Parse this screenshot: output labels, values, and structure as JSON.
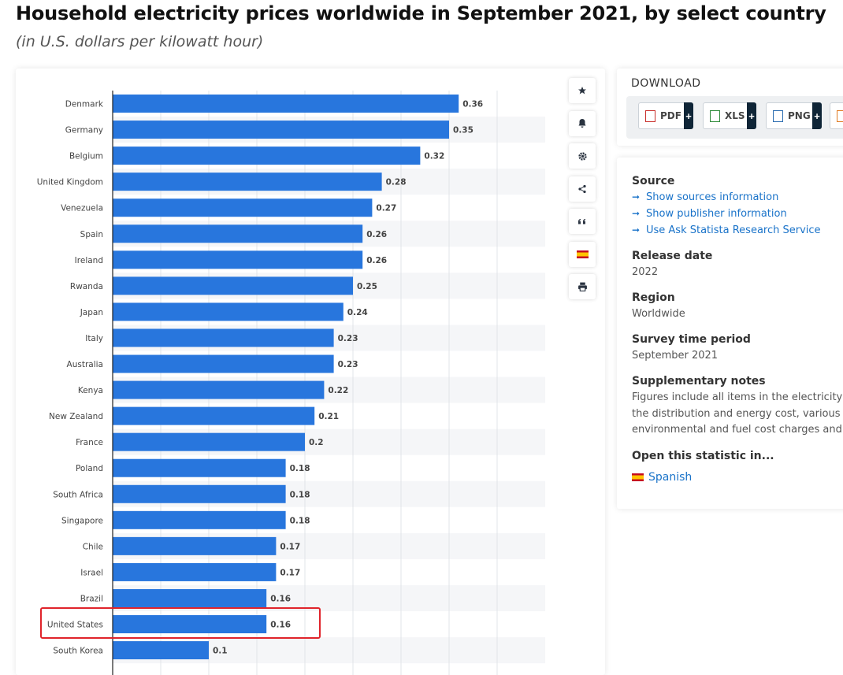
{
  "page": {
    "title": "Household electricity prices worldwide in September 2021, by select country",
    "subtitle": "(in U.S. dollars per kilowatt hour)"
  },
  "chart_data": {
    "type": "bar",
    "orientation": "horizontal",
    "categories": [
      "Denmark",
      "Germany",
      "Belgium",
      "United Kingdom",
      "Venezuela",
      "Spain",
      "Ireland",
      "Rwanda",
      "Japan",
      "Italy",
      "Australia",
      "Kenya",
      "New Zealand",
      "France",
      "Poland",
      "South Africa",
      "Singapore",
      "Chile",
      "Israel",
      "Brazil",
      "United States",
      "South Korea"
    ],
    "values": [
      0.36,
      0.35,
      0.32,
      0.28,
      0.27,
      0.26,
      0.26,
      0.25,
      0.24,
      0.23,
      0.23,
      0.22,
      0.21,
      0.2,
      0.18,
      0.18,
      0.18,
      0.17,
      0.17,
      0.16,
      0.16,
      0.1
    ],
    "value_labels": [
      "0.36",
      "0.35",
      "0.32",
      "0.28",
      "0.27",
      "0.26",
      "0.26",
      "0.25",
      "0.24",
      "0.23",
      "0.23",
      "0.22",
      "0.21",
      "0.2",
      "0.18",
      "0.18",
      "0.18",
      "0.17",
      "0.17",
      "0.16",
      "0.16",
      "0.1"
    ],
    "xlim": [
      0,
      0.4
    ],
    "bar_color": "#2876dd",
    "highlighted_category": "United States",
    "highlight_color": "#e0242b",
    "grid": true
  },
  "toolbar": {
    "icons": [
      "star-icon",
      "bell-icon",
      "gear-icon",
      "share-icon",
      "quote-icon",
      "spain-flag-icon",
      "print-icon"
    ]
  },
  "download": {
    "title": "DOWNLOAD",
    "buttons": [
      {
        "label": "PDF",
        "plus": "+"
      },
      {
        "label": "XLS",
        "plus": "+"
      },
      {
        "label": "PNG",
        "plus": "+"
      }
    ]
  },
  "info": {
    "source_heading": "Source",
    "links": [
      "Show sources information",
      "Show publisher information",
      "Use Ask Statista Research Service"
    ],
    "release_heading": "Release date",
    "release_value": "2022",
    "region_heading": "Region",
    "region_value": "Worldwide",
    "survey_heading": "Survey time period",
    "survey_value": "September 2021",
    "notes_heading": "Supplementary notes",
    "notes_lines": [
      "Figures include all items in the electricity bill s",
      "the distribution and energy cost, various",
      "environmental and fuel cost charges and taxe"
    ],
    "open_heading": "Open this statistic in...",
    "open_language": "Spanish"
  }
}
